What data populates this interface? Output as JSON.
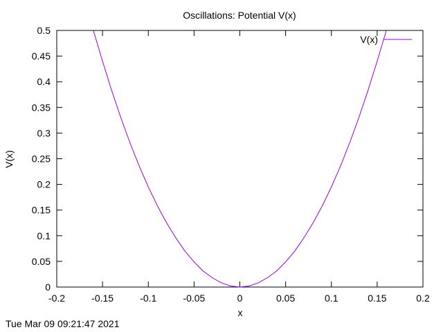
{
  "chart_data": {
    "type": "line",
    "title": "Oscillations: Potential V(x)",
    "xlabel": "x",
    "ylabel": "V(x)",
    "xlim": [
      -0.2,
      0.2
    ],
    "ylim": [
      0,
      0.5
    ],
    "xticks": [
      "-0.2",
      "-0.15",
      "-0.1",
      "-0.05",
      "0",
      "0.05",
      "0.1",
      "0.15",
      "0.2"
    ],
    "yticks": [
      "0",
      "0.05",
      "0.1",
      "0.15",
      "0.2",
      "0.25",
      "0.3",
      "0.35",
      "0.4",
      "0.45",
      "0.5"
    ],
    "legend_position": "top-right",
    "grid": false,
    "series": [
      {
        "name": "V(x)",
        "color": "#9400d3",
        "x": [
          -0.16,
          -0.15,
          -0.14,
          -0.13,
          -0.12,
          -0.11,
          -0.1,
          -0.09,
          -0.08,
          -0.07,
          -0.06,
          -0.05,
          -0.04,
          -0.03,
          -0.02,
          -0.01,
          0,
          0.01,
          0.02,
          0.03,
          0.04,
          0.05,
          0.06,
          0.07,
          0.08,
          0.09,
          0.1,
          0.11,
          0.12,
          0.13,
          0.14,
          0.15,
          0.16
        ],
        "y": [
          0.5,
          0.44,
          0.383,
          0.33,
          0.281,
          0.236,
          0.195,
          0.158,
          0.125,
          0.096,
          0.07,
          0.049,
          0.031,
          0.018,
          0.008,
          0.002,
          0,
          0.002,
          0.008,
          0.018,
          0.031,
          0.049,
          0.07,
          0.096,
          0.125,
          0.158,
          0.195,
          0.236,
          0.281,
          0.33,
          0.383,
          0.44,
          0.5
        ]
      }
    ]
  },
  "footer": {
    "timestamp": "Tue Mar 09 09:21:47 2021"
  }
}
